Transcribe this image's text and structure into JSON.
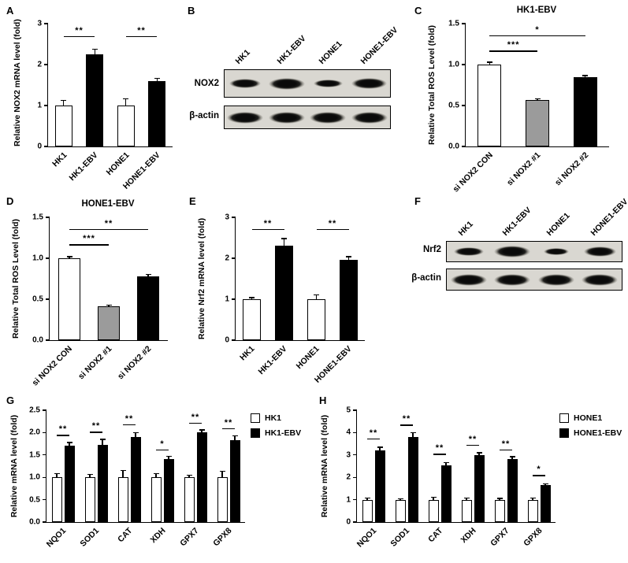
{
  "panel_letters": {
    "a": "A",
    "b": "B",
    "c": "C",
    "d": "D",
    "e": "E",
    "f": "F",
    "g": "G",
    "h": "H"
  },
  "chart_data": [
    {
      "panel": "A",
      "type": "bar",
      "title": "",
      "ylabel": "Relative NOX2 mRNA level (fold)",
      "ylim": [
        0,
        3
      ],
      "yticks": [
        "0",
        "1",
        "2",
        "3"
      ],
      "categories": [
        "HK1",
        "HK1-EBV",
        "HONE1",
        "HONE1-EBV"
      ],
      "values": [
        1.0,
        2.25,
        1.0,
        1.6
      ],
      "errors": [
        0.12,
        0.12,
        0.16,
        0.06
      ],
      "colors": [
        "#ffffff",
        "#000000",
        "#ffffff",
        "#000000"
      ],
      "sig": [
        {
          "from": 0,
          "to": 1,
          "y": 2.7,
          "label": "**"
        },
        {
          "from": 2,
          "to": 3,
          "y": 2.7,
          "label": "**"
        }
      ]
    },
    {
      "panel": "C",
      "type": "bar",
      "title": "HK1-EBV",
      "ylabel": "Relative Total ROS Level (fold)",
      "ylim": [
        0,
        1.5
      ],
      "yticks": [
        "0.0",
        "0.5",
        "1.0",
        "1.5"
      ],
      "categories": [
        "si NOX2 CON",
        "si NOX2 #1",
        "si NOX2 #2"
      ],
      "values": [
        1.0,
        0.57,
        0.85
      ],
      "errors": [
        0.03,
        0.015,
        0.015
      ],
      "colors": [
        "#ffffff",
        "#9b9b9b",
        "#000000"
      ],
      "sig": [
        {
          "from": 0,
          "to": 1,
          "y": 1.17,
          "label": "***"
        },
        {
          "from": 0,
          "to": 2,
          "y": 1.36,
          "label": "*"
        }
      ]
    },
    {
      "panel": "D",
      "type": "bar",
      "title": "HONE1-EBV",
      "ylabel": "Relative Total ROS Level (fold)",
      "ylim": [
        0,
        1.5
      ],
      "yticks": [
        "0.0",
        "0.5",
        "1.0",
        "1.5"
      ],
      "categories": [
        "si NOX2 CON",
        "si NOX2 #1",
        "si NOX2 #2"
      ],
      "values": [
        1.0,
        0.41,
        0.78
      ],
      "errors": [
        0.02,
        0.015,
        0.02
      ],
      "colors": [
        "#ffffff",
        "#9b9b9b",
        "#000000"
      ],
      "sig": [
        {
          "from": 0,
          "to": 1,
          "y": 1.17,
          "label": "***"
        },
        {
          "from": 0,
          "to": 2,
          "y": 1.36,
          "label": "**"
        }
      ]
    },
    {
      "panel": "E",
      "type": "bar",
      "title": "",
      "ylabel": "Relative Nrf2 mRNA level (fold)",
      "ylim": [
        0,
        3
      ],
      "yticks": [
        "0",
        "1",
        "2",
        "3"
      ],
      "categories": [
        "HK1",
        "HK1-EBV",
        "HONE1",
        "HONE1-EBV"
      ],
      "values": [
        1.0,
        2.3,
        1.0,
        1.97
      ],
      "errors": [
        0.04,
        0.18,
        0.1,
        0.07
      ],
      "colors": [
        "#ffffff",
        "#000000",
        "#ffffff",
        "#000000"
      ],
      "sig": [
        {
          "from": 0,
          "to": 1,
          "y": 2.72,
          "label": "**"
        },
        {
          "from": 2,
          "to": 3,
          "y": 2.72,
          "label": "**"
        }
      ]
    },
    {
      "panel": "G",
      "type": "grouped-bar",
      "title": "",
      "ylabel": "Relative mRNA level (fold)",
      "ylim": [
        0,
        2.5
      ],
      "yticks": [
        "0.0",
        "0.5",
        "1.0",
        "1.5",
        "2.0",
        "2.5"
      ],
      "categories": [
        "NQO1",
        "SOD1",
        "CAT",
        "XDH",
        "GPX7",
        "GPX8"
      ],
      "series": [
        {
          "name": "HK1",
          "color": "#ffffff",
          "values": [
            1.0,
            1.0,
            1.0,
            1.0,
            1.0,
            1.0
          ],
          "errors": [
            0.08,
            0.06,
            0.15,
            0.08,
            0.05,
            0.13
          ]
        },
        {
          "name": "HK1-EBV",
          "color": "#000000",
          "values": [
            1.7,
            1.73,
            1.9,
            1.4,
            2.0,
            1.83
          ],
          "errors": [
            0.08,
            0.12,
            0.1,
            0.07,
            0.06,
            0.1
          ]
        }
      ],
      "sig_labels": [
        "**",
        "**",
        "**",
        "*",
        "**",
        "**"
      ],
      "sig_y": [
        1.95,
        2.02,
        2.18,
        1.62,
        2.22,
        2.1
      ]
    },
    {
      "panel": "H",
      "type": "grouped-bar",
      "title": "",
      "ylabel": "Relative mRNA level (fold)",
      "ylim": [
        0,
        5
      ],
      "yticks": [
        "0",
        "1",
        "2",
        "3",
        "4",
        "5"
      ],
      "categories": [
        "NQO1",
        "SOD1",
        "CAT",
        "XDH",
        "GPX7",
        "GPX8"
      ],
      "series": [
        {
          "name": "HONE1",
          "color": "#ffffff",
          "values": [
            1.0,
            1.0,
            1.0,
            1.0,
            1.0,
            1.0
          ],
          "errors": [
            0.07,
            0.05,
            0.12,
            0.08,
            0.06,
            0.08
          ]
        },
        {
          "name": "HONE1-EBV",
          "color": "#000000",
          "values": [
            3.2,
            3.8,
            2.55,
            3.0,
            2.8,
            1.65
          ],
          "errors": [
            0.15,
            0.2,
            0.12,
            0.1,
            0.12,
            0.07
          ]
        }
      ],
      "sig_labels": [
        "**",
        "**",
        "**",
        "**",
        "**",
        "*"
      ],
      "sig_y": [
        3.75,
        4.35,
        3.05,
        3.45,
        3.25,
        2.1
      ]
    }
  ],
  "blots": [
    {
      "panel": "B",
      "lanes": [
        "HK1",
        "HK1-EBV",
        "HONE1",
        "HONE1-EBV"
      ],
      "rows": [
        {
          "label": "NOX2",
          "weights": [
            0.7,
            1.0,
            0.55,
            0.95
          ]
        },
        {
          "label": "β-actin",
          "weights": [
            1.0,
            1.0,
            1.0,
            1.0
          ]
        }
      ]
    },
    {
      "panel": "F",
      "lanes": [
        "HK1",
        "HK1-EBV",
        "HONE1",
        "HONE1-EBV"
      ],
      "rows": [
        {
          "label": "Nrf2",
          "weights": [
            0.6,
            1.0,
            0.3,
            0.75
          ]
        },
        {
          "label": "β-actin",
          "weights": [
            1.0,
            1.0,
            1.0,
            1.0
          ]
        }
      ]
    }
  ]
}
